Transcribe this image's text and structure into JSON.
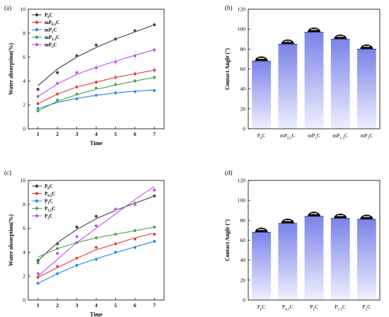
{
  "chart_data": [
    {
      "type": "scatter",
      "panel_label": "(a)",
      "xlabel": "Time",
      "ylabel": "Water absorption(%)",
      "xlim": [
        0.5,
        7.5
      ],
      "ylim": [
        0,
        10
      ],
      "xticks": [
        1,
        2,
        3,
        4,
        5,
        6,
        7
      ],
      "yticks": [
        0,
        2,
        4,
        6,
        8,
        10
      ],
      "legend_position": "top-left",
      "x": [
        1,
        2,
        3,
        4,
        5,
        6,
        7
      ],
      "series": [
        {
          "name": "P0C",
          "label_main": "P",
          "label_sub": "0",
          "label_tail": "C",
          "color": "#3c3c3c",
          "values": [
            3.3,
            4.7,
            6.1,
            7.0,
            7.5,
            8.2,
            8.7
          ],
          "fit": [
            3.6,
            5.0,
            6.0,
            6.8,
            7.5,
            8.1,
            8.7
          ],
          "errors": [
            0.15,
            0.2,
            0.2,
            0.2,
            0.2,
            0.15,
            0.15
          ]
        },
        {
          "name": "mP0.5C",
          "label_main": "mP",
          "label_sub": "0.5",
          "label_tail": "C",
          "color": "#e53935",
          "values": [
            2.1,
            2.9,
            3.5,
            3.9,
            4.3,
            4.6,
            4.9
          ],
          "fit": [
            2.1,
            2.9,
            3.5,
            3.9,
            4.3,
            4.6,
            4.9
          ],
          "errors": [
            0.15,
            0.2,
            0.15,
            0.2,
            0.3,
            0.25,
            0.3
          ]
        },
        {
          "name": "mP1C",
          "label_main": "mP",
          "label_sub": "1",
          "label_tail": "C",
          "color": "#1e88e5",
          "values": [
            1.7,
            2.3,
            2.5,
            2.8,
            3.0,
            3.1,
            3.2
          ],
          "fit": [
            1.7,
            2.2,
            2.55,
            2.8,
            3.0,
            3.15,
            3.25
          ],
          "errors": [
            0.1,
            0.1,
            0.1,
            0.15,
            0.15,
            0.15,
            0.1
          ]
        },
        {
          "name": "mP1.5C",
          "label_main": "mP",
          "label_sub": "1.5",
          "label_tail": "C",
          "color": "#43a047",
          "values": [
            1.5,
            2.4,
            2.9,
            3.4,
            3.7,
            4.0,
            4.3
          ],
          "fit": [
            1.5,
            2.3,
            2.85,
            3.3,
            3.65,
            4.0,
            4.3
          ],
          "errors": [
            0.1,
            0.15,
            0.15,
            0.15,
            0.2,
            0.2,
            0.2
          ]
        },
        {
          "name": "mP2C",
          "label_main": "mP",
          "label_sub": "2",
          "label_tail": "C",
          "color": "#c44ae8",
          "values": [
            2.7,
            3.8,
            4.7,
            5.1,
            5.6,
            6.1,
            6.6
          ],
          "fit": [
            2.7,
            3.75,
            4.55,
            5.15,
            5.65,
            6.15,
            6.6
          ],
          "errors": [
            0.2,
            0.2,
            0.2,
            0.4,
            0.4,
            0.45,
            0.2
          ]
        }
      ]
    },
    {
      "type": "bar",
      "panel_label": "(b)",
      "xlabel": "",
      "ylabel": "Contact Angle (°)",
      "ylim": [
        0,
        120
      ],
      "yticks": [
        0,
        20,
        40,
        60,
        80,
        100,
        120
      ],
      "categories": [
        {
          "main": "P",
          "sub": "0",
          "tail": "C"
        },
        {
          "main": "mP",
          "sub": "0.5",
          "tail": "C"
        },
        {
          "main": "mP",
          "sub": "1",
          "tail": "C"
        },
        {
          "main": "mP",
          "sub": "1.5",
          "tail": "C"
        },
        {
          "main": "mP",
          "sub": "2",
          "tail": "C"
        }
      ],
      "values": [
        68,
        85,
        97,
        90,
        80
      ],
      "bar_color_top": "#7b83e8",
      "bar_color_bottom": "#eef0ff"
    },
    {
      "type": "scatter",
      "panel_label": "(c)",
      "xlabel": "Time",
      "ylabel": "Water absorption(%)",
      "xlim": [
        0.5,
        7.5
      ],
      "ylim": [
        0,
        10
      ],
      "xticks": [
        1,
        2,
        3,
        4,
        5,
        6,
        7
      ],
      "yticks": [
        0,
        2,
        4,
        6,
        8,
        10
      ],
      "legend_position": "top-left",
      "x": [
        1,
        2,
        3,
        4,
        5,
        6,
        7
      ],
      "series": [
        {
          "name": "P0C",
          "label_main": "P",
          "label_sub": "0",
          "label_tail": "C",
          "color": "#3c3c3c",
          "values": [
            3.3,
            4.7,
            6.1,
            7.0,
            7.6,
            8.1,
            8.7
          ],
          "fit": [
            3.3,
            4.8,
            5.9,
            6.8,
            7.5,
            8.1,
            8.7
          ],
          "errors": [
            0.15,
            0.2,
            0.2,
            0.2,
            0.2,
            0.15,
            0.15
          ]
        },
        {
          "name": "P0.5C",
          "label_main": "P",
          "label_sub": "0.5",
          "label_tail": "C",
          "color": "#e53935",
          "values": [
            1.9,
            2.8,
            3.5,
            4.4,
            4.7,
            5.1,
            5.5
          ],
          "fit": [
            1.9,
            2.7,
            3.5,
            4.2,
            4.7,
            5.2,
            5.6
          ],
          "errors": [
            0.1,
            0.1,
            0.1,
            0.1,
            0.1,
            0.1,
            0.1
          ]
        },
        {
          "name": "P1C",
          "label_main": "P",
          "label_sub": "1",
          "label_tail": "C",
          "color": "#1e88e5",
          "values": [
            1.4,
            2.2,
            2.9,
            3.4,
            4.0,
            4.4,
            4.9
          ],
          "fit": [
            1.4,
            2.2,
            2.9,
            3.45,
            3.95,
            4.45,
            4.9
          ],
          "errors": [
            0.1,
            0.1,
            0.1,
            0.1,
            0.1,
            0.1,
            0.1
          ]
        },
        {
          "name": "P1.5C",
          "label_main": "P",
          "label_sub": "1.5",
          "label_tail": "C",
          "color": "#43a047",
          "values": [
            3.1,
            4.3,
            4.8,
            5.2,
            5.5,
            5.8,
            6.1
          ],
          "fit": [
            3.6,
            4.3,
            4.8,
            5.2,
            5.5,
            5.8,
            6.1
          ],
          "errors": [
            0.1,
            0.1,
            0.1,
            0.1,
            0.1,
            0.1,
            0.1
          ]
        },
        {
          "name": "P2C",
          "label_main": "P",
          "label_sub": "2",
          "label_tail": "C",
          "color": "#c44ae8",
          "values": [
            2.2,
            3.9,
            5.3,
            6.2,
            7.6,
            8.0,
            9.2
          ],
          "fit": [
            2.0,
            3.4,
            4.8,
            6.0,
            7.2,
            8.4,
            9.5
          ],
          "errors": [
            0.1,
            0.1,
            0.15,
            0.2,
            0.2,
            0.2,
            0.2
          ]
        }
      ]
    },
    {
      "type": "bar",
      "panel_label": "(d)",
      "xlabel": "",
      "ylabel": "Contact Angle (°)",
      "ylim": [
        0,
        120
      ],
      "yticks": [
        0,
        20,
        40,
        60,
        80,
        100,
        120
      ],
      "categories": [
        {
          "main": "P",
          "sub": "0",
          "tail": "C"
        },
        {
          "main": "P",
          "sub": "0.5",
          "tail": "C"
        },
        {
          "main": "P",
          "sub": "1",
          "tail": "C"
        },
        {
          "main": "P",
          "sub": "1.5",
          "tail": "C"
        },
        {
          "main": "P",
          "sub": "2",
          "tail": "C"
        }
      ],
      "values": [
        68,
        77,
        84,
        82,
        81
      ],
      "bar_color_top": "#7b83e8",
      "bar_color_bottom": "#eef0ff"
    }
  ]
}
